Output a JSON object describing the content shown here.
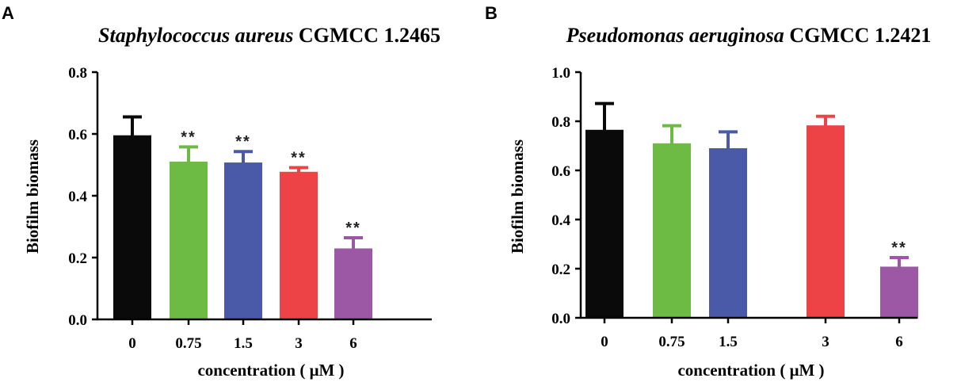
{
  "chart_data": [
    {
      "type": "bar",
      "panel": "A",
      "title_italic": "Staphylococcus aureus",
      "title_rest": " CGMCC 1.2465",
      "xlabel": "concentration ( μM )",
      "ylabel": "Biofilm biomass",
      "ylim": [
        0,
        0.8
      ],
      "yticks": [
        "0.0",
        "0.2",
        "0.4",
        "0.6",
        "0.8"
      ],
      "categories": [
        "0",
        "0.75",
        "1.5",
        "3",
        "6"
      ],
      "values": [
        0.593,
        0.508,
        0.505,
        0.475,
        0.227
      ],
      "errors": [
        0.062,
        0.05,
        0.038,
        0.016,
        0.037
      ],
      "significance": [
        "",
        "**",
        "**",
        "**",
        "**"
      ],
      "colors": [
        "#0a0a0a",
        "#6dbb45",
        "#4a5aa8",
        "#ed4246",
        "#9c58a5"
      ]
    },
    {
      "type": "bar",
      "panel": "B",
      "title_italic": "Pseudomonas aeruginosa",
      "title_rest": " CGMCC 1.2421",
      "xlabel": "concentration ( μM )",
      "ylabel": "Biofilm biomass",
      "ylim": [
        0,
        1.0
      ],
      "yticks": [
        "0.0",
        "0.2",
        "0.4",
        "0.6",
        "0.8",
        "1.0"
      ],
      "categories": [
        "0",
        "0.75",
        "1.5",
        "3",
        "6"
      ],
      "values": [
        0.762,
        0.707,
        0.687,
        0.78,
        0.205
      ],
      "errors": [
        0.11,
        0.075,
        0.07,
        0.04,
        0.04
      ],
      "significance": [
        "",
        "",
        "",
        "",
        "**"
      ],
      "colors": [
        "#0a0a0a",
        "#6dbb45",
        "#4a5aa8",
        "#ed4246",
        "#9c58a5"
      ]
    }
  ]
}
